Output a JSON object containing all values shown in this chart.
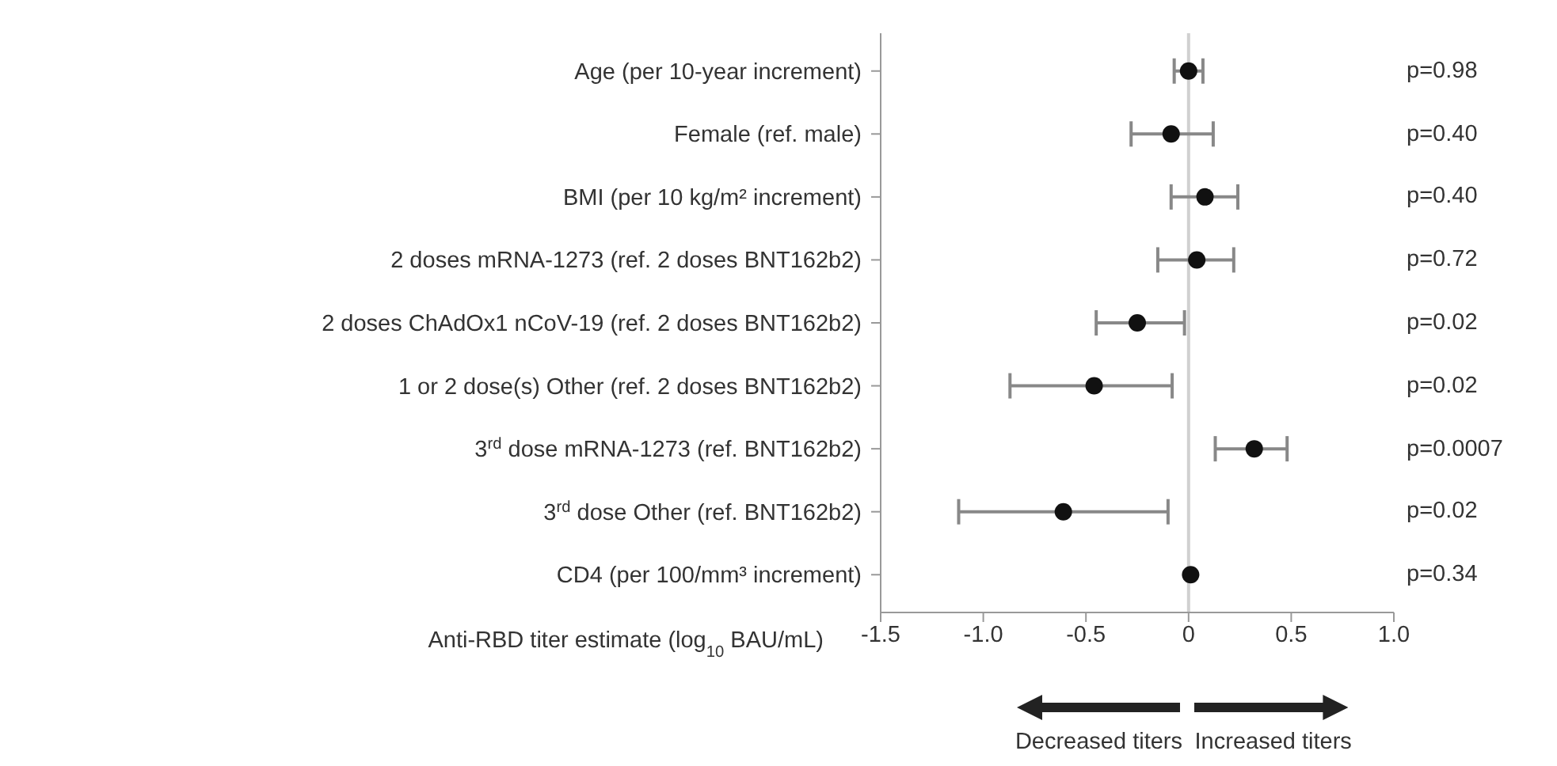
{
  "chart_data": {
    "type": "scatter",
    "orientation": "horizontal",
    "categories": [
      "Age (per 10-year increment)",
      "Female (ref. male)",
      "BMI (per 10 kg/m² increment)",
      "2 doses mRNA-1273 (ref. 2 doses BNT162b2)",
      "2 doses ChAdOx1 nCoV-19 (ref. 2 doses BNT162b2)",
      "1 or 2 dose(s) Other (ref. 2 doses BNT162b2)",
      "3$^{rd}$ dose mRNA-1273 (ref. BNT162b2)",
      "3$^{rd}$ dose Other (ref. BNT162b2)",
      "CD4 (per 100/mm³ increment)"
    ],
    "values": [
      0.0,
      -0.085,
      0.08,
      0.04,
      -0.25,
      -0.46,
      0.32,
      -0.61,
      0.01
    ],
    "errors": [
      [
        -0.07,
        0.07
      ],
      [
        -0.28,
        0.12
      ],
      [
        -0.085,
        0.24
      ],
      [
        -0.15,
        0.22
      ],
      [
        -0.45,
        -0.02
      ],
      [
        -0.87,
        -0.08
      ],
      [
        0.13,
        0.48
      ],
      [
        -1.12,
        -0.1
      ],
      null
    ],
    "color": "#111111",
    "marker": "circle",
    "xlim": [
      -1.5,
      1.0
    ],
    "xticks": [
      -1.5,
      {
        "value": -1.0,
        "label": "-1.0"
      },
      -0.5,
      0,
      0.5,
      {
        "value": 1.0,
        "label": "1.0"
      }
    ],
    "xlabel": "Anti-RBD titer estimate (log$_{10}$ BAU/mL)",
    "ref_lines": [
      {
        "axis": "x",
        "value": 0,
        "color": "#d0d0d0"
      }
    ],
    "grid": false,
    "legend": false,
    "annotations": [
      "p=0.98",
      "p=0.40",
      "p=0.40",
      "p=0.72",
      "p=0.02",
      "p=0.02",
      "p=0.0007",
      "p=0.02",
      "p=0.34",
      "Decreased titers",
      "Increased titers"
    ]
  }
}
